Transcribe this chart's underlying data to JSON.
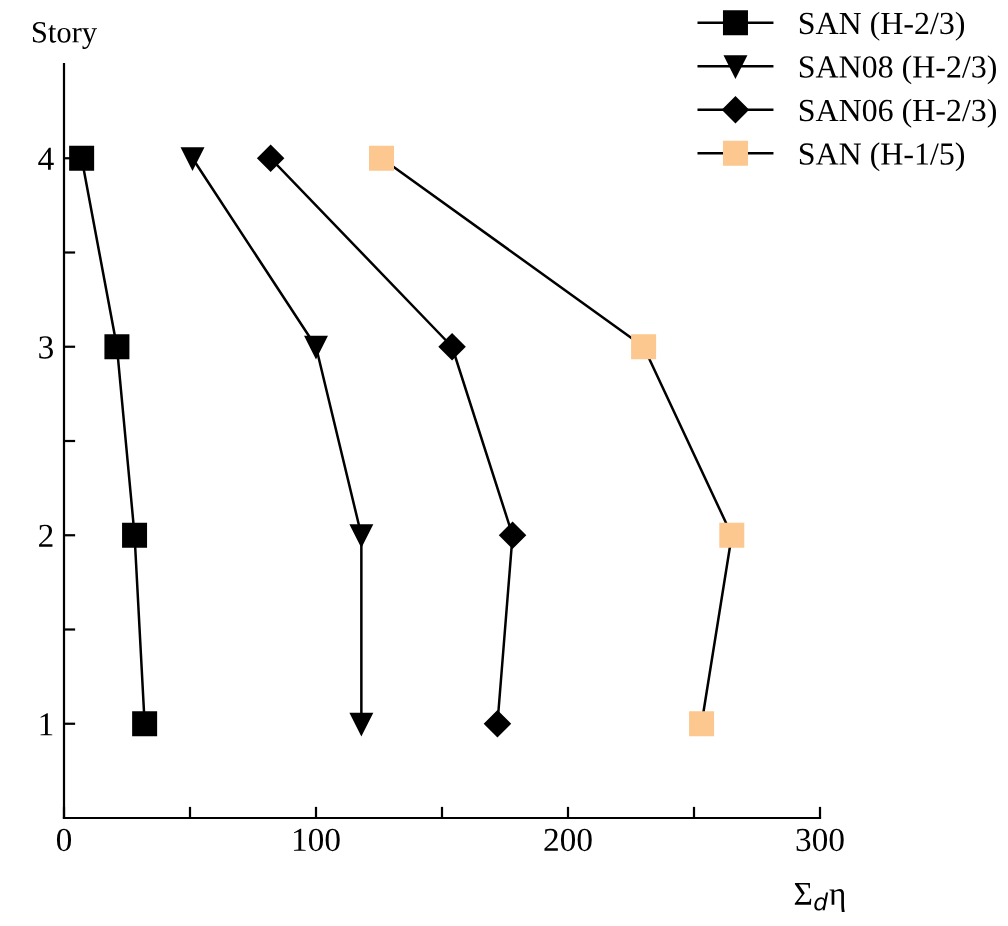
{
  "chart_data": {
    "type": "line",
    "xlabel": "Σ$_{d}$η",
    "ylabel": "Story",
    "xlim": [
      0,
      300
    ],
    "xticks": [
      0,
      {
        "value": 50,
        "label": null
      },
      100,
      {
        "value": 150,
        "label": null
      },
      200,
      {
        "value": 250,
        "label": null
      },
      300
    ],
    "ylim": [
      0.5,
      4.5
    ],
    "yticks": [
      1,
      {
        "value": 1.5,
        "label": null
      },
      2,
      {
        "value": 2.5,
        "label": null
      },
      3,
      {
        "value": 3.5,
        "label": null
      },
      4
    ],
    "grid": false,
    "legend": "top right",
    "line_style": "solid",
    "series": [
      {
        "name": "SAN (H-2/3)",
        "color": "#000000",
        "marker": "square",
        "x": [
          7,
          21,
          28,
          32
        ],
        "values": [
          4,
          3,
          2,
          1
        ]
      },
      {
        "name": "SAN08 (H-2/3)",
        "color": "#000000",
        "marker": "triangle",
        "x": [
          51,
          100,
          118,
          118
        ],
        "values": [
          4,
          3,
          2,
          1
        ]
      },
      {
        "name": "SAN06 (H-2/3)",
        "color": "#000000",
        "marker": "diamond",
        "x": [
          82,
          154,
          178,
          172
        ],
        "values": [
          4,
          3,
          2,
          1
        ]
      },
      {
        "name": "SAN (H-1/5)",
        "color": "#fcc890",
        "marker": "square",
        "x": [
          126,
          230,
          265,
          253
        ],
        "values": [
          4,
          3,
          2,
          1
        ]
      }
    ]
  }
}
